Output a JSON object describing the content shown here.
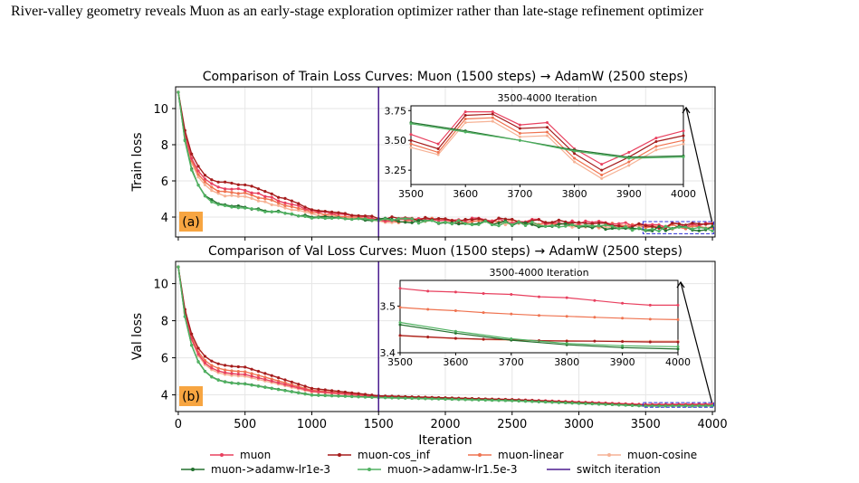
{
  "page_title": "River-valley geometry reveals Muon as an early-stage exploration optimizer rather than late-stage refinement optimizer",
  "colors": {
    "muon": "#e8405f",
    "muon-cos_inf": "#a51c1c",
    "muon-linear": "#ef7350",
    "muon-cosine": "#f6b295",
    "muon->adamw-lr1e-3": "#23712f",
    "muon->adamw-lr1.5e-3": "#51b262",
    "switch iteration": "#4b1c8f",
    "badge": "#f7a541",
    "zoom_box": "#2c2cd4"
  },
  "legend": {
    "placement": "bottom-center",
    "items": [
      "muon",
      "muon-cos_inf",
      "muon-linear",
      "muon-cosine",
      "muon->adamw-lr1e-3",
      "muon->adamw-lr1.5e-3",
      "switch iteration"
    ]
  },
  "chart_data": [
    {
      "type": "line",
      "panel_label": "(a)",
      "title": "Comparison of Train Loss Curves: Muon (1500 steps) → AdamW (2500 steps)",
      "xlabel": "",
      "ylabel": "Train loss",
      "xlim": [
        -20,
        4020
      ],
      "ylim": [
        2.9,
        11.2
      ],
      "xticks": [
        0,
        500,
        1000,
        1500,
        2000,
        2500,
        3000,
        3500,
        4000
      ],
      "yticks": [
        4,
        6,
        8,
        10
      ],
      "ytick_labels": [
        "4",
        "6",
        "8",
        "10"
      ],
      "grid": true,
      "switch_x": 1500,
      "series": [
        {
          "name": "muon",
          "x": [
            0,
            500,
            1000,
            1500
          ],
          "y": [
            10.9,
            5.5,
            4.35,
            3.9
          ]
        },
        {
          "name": "muon-cos_inf",
          "x": [
            0,
            500,
            1000,
            1500
          ],
          "y": [
            10.9,
            5.8,
            4.45,
            3.95
          ]
        },
        {
          "name": "muon-linear",
          "x": [
            0,
            500,
            1000,
            1500
          ],
          "y": [
            10.9,
            5.3,
            4.25,
            3.85
          ]
        },
        {
          "name": "muon-cosine",
          "x": [
            0,
            500,
            1000,
            1500
          ],
          "y": [
            10.9,
            5.1,
            4.15,
            3.8
          ]
        },
        {
          "name": "muon->adamw-lr1e-3",
          "x": [
            0,
            500,
            1000,
            1500
          ],
          "y": [
            10.9,
            4.55,
            4.0,
            3.85
          ]
        },
        {
          "name": "muon->adamw-lr1.5e-3",
          "x": [
            0,
            500,
            1000,
            1500
          ],
          "y": [
            10.9,
            4.5,
            3.98,
            3.82
          ]
        }
      ],
      "inset": {
        "title": "3500-4000 Iteration",
        "xlim": [
          3500,
          4000
        ],
        "ylim": [
          3.13,
          3.79
        ],
        "xticks": [
          3500,
          3600,
          3700,
          3800,
          3900,
          4000
        ],
        "yticks": [
          3.25,
          3.5,
          3.75
        ],
        "ytick_labels": [
          "3.25",
          "3.50",
          "3.75"
        ],
        "series": [
          {
            "name": "muon",
            "x": [
              3500,
              3550,
              3600,
              3650,
              3700,
              3750,
              3800,
              3850,
              3900,
              3950,
              4000
            ],
            "y": [
              3.55,
              3.47,
              3.74,
              3.74,
              3.63,
              3.65,
              3.43,
              3.3,
              3.4,
              3.52,
              3.58
            ]
          },
          {
            "name": "muon-cos_inf",
            "x": [
              3500,
              3550,
              3600,
              3650,
              3700,
              3750,
              3800,
              3850,
              3900,
              3950,
              4000
            ],
            "y": [
              3.5,
              3.43,
              3.71,
              3.72,
              3.6,
              3.61,
              3.39,
              3.25,
              3.36,
              3.49,
              3.54
            ]
          },
          {
            "name": "muon-linear",
            "x": [
              3500,
              3550,
              3600,
              3650,
              3700,
              3750,
              3800,
              3850,
              3900,
              3950,
              4000
            ],
            "y": [
              3.47,
              3.4,
              3.68,
              3.69,
              3.56,
              3.57,
              3.35,
              3.21,
              3.32,
              3.45,
              3.5
            ]
          },
          {
            "name": "muon-cosine",
            "x": [
              3500,
              3550,
              3600,
              3650,
              3700,
              3750,
              3800,
              3850,
              3900,
              3950,
              4000
            ],
            "y": [
              3.44,
              3.38,
              3.65,
              3.66,
              3.53,
              3.54,
              3.32,
              3.18,
              3.29,
              3.42,
              3.47
            ]
          },
          {
            "name": "muon->adamw-lr1e-3",
            "x": [
              3500,
              3600,
              3700,
              3800,
              3900,
              4000
            ],
            "y": [
              3.65,
              3.58,
              3.5,
              3.42,
              3.36,
              3.37
            ]
          },
          {
            "name": "muon->adamw-lr1.5e-3",
            "x": [
              3500,
              3600,
              3700,
              3800,
              3900,
              4000
            ],
            "y": [
              3.64,
              3.57,
              3.5,
              3.41,
              3.35,
              3.36
            ]
          }
        ]
      }
    },
    {
      "type": "line",
      "panel_label": "(b)",
      "title": "Comparison of Val Loss Curves: Muon (1500 steps) → AdamW (2500 steps)",
      "xlabel": "Iteration",
      "ylabel": "Val loss",
      "xlim": [
        -20,
        4020
      ],
      "ylim": [
        3.1,
        11.2
      ],
      "xticks": [
        0,
        500,
        1000,
        1500,
        2000,
        2500,
        3000,
        3500,
        4000
      ],
      "xtick_labels": [
        "0",
        "500",
        "1000",
        "1500",
        "2000",
        "2500",
        "3000",
        "3500",
        "4000"
      ],
      "yticks": [
        4,
        6,
        8,
        10
      ],
      "ytick_labels": [
        "4",
        "6",
        "8",
        "10"
      ],
      "grid": true,
      "switch_x": 1500,
      "series": [
        {
          "name": "muon",
          "x": [
            0,
            500,
            1000,
            1500
          ],
          "y": [
            10.9,
            5.1,
            4.2,
            3.9
          ]
        },
        {
          "name": "muon-cos_inf",
          "x": [
            0,
            500,
            1000,
            1500
          ],
          "y": [
            10.9,
            5.5,
            4.35,
            3.95
          ]
        },
        {
          "name": "muon-linear",
          "x": [
            0,
            500,
            1000,
            1500
          ],
          "y": [
            10.9,
            5.25,
            4.25,
            3.92
          ]
        },
        {
          "name": "muon-cosine",
          "x": [
            0,
            500,
            1000,
            1500
          ],
          "y": [
            10.9,
            5.0,
            4.15,
            3.88
          ]
        },
        {
          "name": "muon->adamw-lr1e-3",
          "x": [
            0,
            500,
            1000,
            1500
          ],
          "y": [
            10.9,
            4.6,
            4.0,
            3.86
          ]
        },
        {
          "name": "muon->adamw-lr1.5e-3",
          "x": [
            0,
            500,
            1000,
            1500
          ],
          "y": [
            10.9,
            4.58,
            3.98,
            3.85
          ]
        }
      ],
      "inset": {
        "title": "3500-4000 Iteration",
        "xlim": [
          3500,
          4000
        ],
        "ylim": [
          3.4,
          3.555
        ],
        "xticks": [
          3500,
          3600,
          3700,
          3800,
          3900,
          4000
        ],
        "yticks": [
          3.4,
          3.5
        ],
        "ytick_labels": [
          "3.4",
          "3.5"
        ],
        "series": [
          {
            "name": "muon",
            "x": [
              3500,
              3550,
              3600,
              3650,
              3700,
              3750,
              3800,
              3850,
              3900,
              3950,
              4000
            ],
            "y": [
              3.538,
              3.532,
              3.53,
              3.527,
              3.525,
              3.52,
              3.518,
              3.512,
              3.506,
              3.502,
              3.502
            ]
          },
          {
            "name": "muon-cos_inf",
            "x": [
              3500,
              3550,
              3600,
              3650,
              3700,
              3750,
              3800,
              3850,
              3900,
              3950,
              4000
            ],
            "y": [
              3.437,
              3.434,
              3.431,
              3.429,
              3.428,
              3.426,
              3.425,
              3.425,
              3.424,
              3.423,
              3.423
            ]
          },
          {
            "name": "muon-linear",
            "x": [
              3500,
              3550,
              3600,
              3650,
              3700,
              3750,
              3800,
              3850,
              3900,
              3950,
              4000
            ],
            "y": [
              3.497,
              3.493,
              3.49,
              3.486,
              3.483,
              3.48,
              3.478,
              3.476,
              3.474,
              3.472,
              3.471
            ]
          },
          {
            "name": "muon-cosine",
            "x": [
              3500,
              3550,
              3600,
              3650,
              3700,
              3750,
              3800,
              3850,
              3900,
              3950,
              4000
            ],
            "y": [
              3.436,
              3.433,
              3.43,
              3.428,
              3.427,
              3.426,
              3.426,
              3.425,
              3.425,
              3.425,
              3.425
            ]
          },
          {
            "name": "muon->adamw-lr1e-3",
            "x": [
              3500,
              3600,
              3700,
              3800,
              3900,
              4000
            ],
            "y": [
              3.46,
              3.442,
              3.427,
              3.417,
              3.411,
              3.408
            ]
          },
          {
            "name": "muon->adamw-lr1.5e-3",
            "x": [
              3500,
              3600,
              3700,
              3800,
              3900,
              4000
            ],
            "y": [
              3.465,
              3.446,
              3.43,
              3.42,
              3.415,
              3.413
            ]
          }
        ]
      }
    }
  ]
}
